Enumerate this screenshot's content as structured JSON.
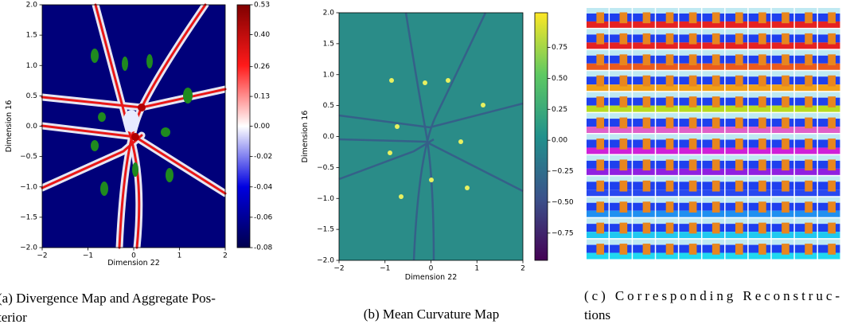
{
  "chart_data": [
    {
      "type": "heatmap",
      "caption": [
        "(a) Divergence Map and Aggregate Pos-",
        "terior"
      ],
      "xlabel": "Dimension 22",
      "ylabel": "Dimension 16",
      "xlim": [
        -2,
        2
      ],
      "ylim": [
        -2,
        2
      ],
      "xticks": [
        {
          "value": -2,
          "label": "−2"
        },
        {
          "value": -1,
          "label": "−1"
        },
        0,
        1,
        2
      ],
      "yticks": [
        {
          "value": -2,
          "label": "−2.0"
        },
        {
          "value": -1.5,
          "label": "−1.5"
        },
        {
          "value": -1,
          "label": "−1.0"
        },
        {
          "value": -0.5,
          "label": "−0.5"
        },
        {
          "value": 0,
          "label": "0.0"
        },
        0.5,
        {
          "value": 1,
          "label": "1.0"
        },
        1.5,
        {
          "value": 2,
          "label": "2.0"
        }
      ],
      "colorbar": {
        "lim": [
          -0.08,
          0.53
        ],
        "center": 0,
        "ticks": [
          0.53,
          {
            "value": 0.4,
            "label": "0.40"
          },
          0.26,
          0.13,
          {
            "value": 0,
            "label": "0.00"
          },
          -0.02,
          -0.04,
          -0.06,
          -0.08
        ],
        "cmap": [
          "#00004d",
          "#0000e0",
          "#ffffff",
          "#ff1a1a",
          "#800000"
        ]
      }
    },
    {
      "type": "heatmap",
      "caption": [
        "(b) Mean Curvature Map"
      ],
      "xlabel": "Dimension 22",
      "ylabel": "Dimension 16",
      "xlim": [
        -2,
        2
      ],
      "ylim": [
        -2,
        2
      ],
      "xticks": [
        {
          "value": -2,
          "label": "−2"
        },
        {
          "value": -1,
          "label": "−1"
        },
        0,
        1,
        2
      ],
      "yticks": [
        {
          "value": -2,
          "label": "−2.0"
        },
        {
          "value": -1.5,
          "label": "−1.5"
        },
        {
          "value": -1,
          "label": "−1.0"
        },
        {
          "value": -0.5,
          "label": "−0.5"
        },
        {
          "value": 0,
          "label": "0.0"
        },
        0.5,
        {
          "value": 1,
          "label": "1.0"
        },
        1.5,
        {
          "value": 2,
          "label": "2.0"
        }
      ],
      "colorbar": {
        "lim": [
          -0.97,
          1.03
        ],
        "ticks": [
          {
            "value": -0.75,
            "label": "−0.75"
          },
          {
            "value": -0.5,
            "label": "−0.50"
          },
          {
            "value": -0.25,
            "label": "−0.25"
          },
          {
            "value": 0,
            "label": "0.00"
          },
          0.25,
          {
            "value": 0.5,
            "label": "0.50"
          },
          0.75
        ],
        "cmap": [
          "#440154",
          "#3b528b",
          "#21918c",
          "#5ec962",
          "#fde725"
        ]
      }
    }
  ],
  "reconstructions": {
    "caption": [
      "(c) Corresponding Reconstruc-",
      "tions"
    ]
  }
}
